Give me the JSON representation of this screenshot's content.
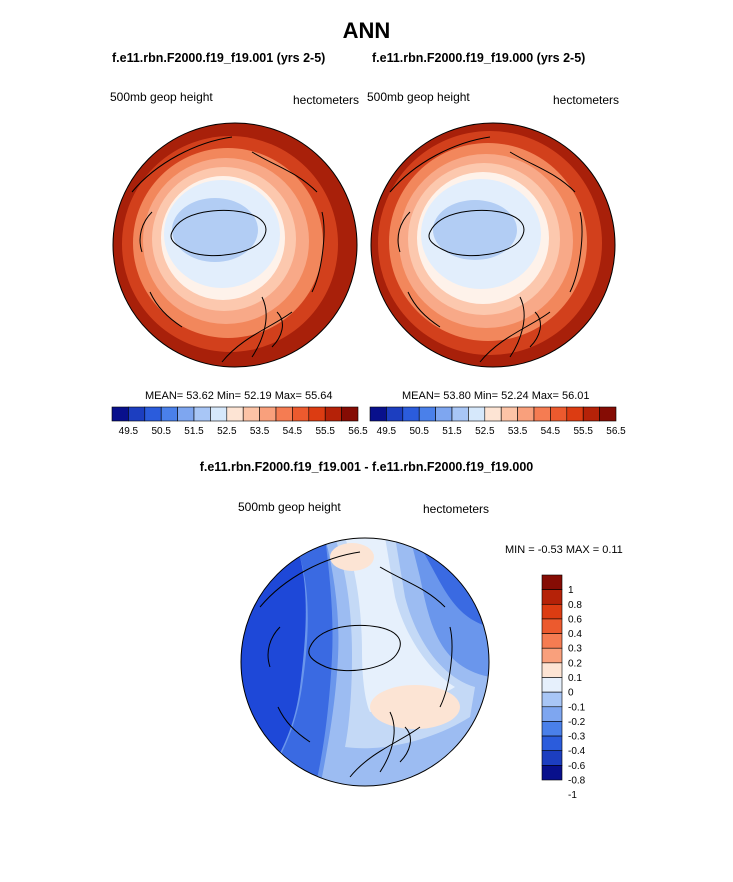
{
  "title": "ANN",
  "panels": [
    {
      "subtitle": "f.e11.rbn.F2000.f19_f19.001 (yrs 2-5)",
      "left_label": "500mb geop height",
      "right_label": "hectometers",
      "stats": {
        "mean_label": "MEAN=",
        "mean": "53.62",
        "min_label": "Min=",
        "min": "52.19",
        "max_label": "Max=",
        "max": "55.64"
      }
    },
    {
      "subtitle": "f.e11.rbn.F2000.f19_f19.000 (yrs 2-5)",
      "left_label": "500mb geop height",
      "right_label": "hectometers",
      "stats": {
        "mean_label": "MEAN=",
        "mean": "53.80",
        "min_label": "Min=",
        "min": "52.24",
        "max_label": "Max=",
        "max": "56.01"
      }
    }
  ],
  "diff_panel": {
    "subtitle": "f.e11.rbn.F2000.f19_f19.001 - f.e11.rbn.F2000.f19_f19.000",
    "left_label": "500mb geop height",
    "right_label": "hectometers",
    "stats_text": "MIN =  -0.53 MAX =   0.11"
  },
  "colorbar": {
    "colors": [
      "#08108c",
      "#1c3ec0",
      "#2b5cdc",
      "#4a80ea",
      "#7ea6f0",
      "#a8c6f6",
      "#d6e8fb",
      "#fde4d4",
      "#fcc3a6",
      "#f9a07c",
      "#f57c52",
      "#ec5a2e",
      "#dc3c12",
      "#b52208",
      "#850c04"
    ],
    "tick_labels": [
      "49.5",
      "50.5",
      "51.5",
      "52.5",
      "53.5",
      "54.5",
      "55.5",
      "56.5"
    ]
  },
  "diff_colorbar": {
    "colors": [
      "#850c04",
      "#b52208",
      "#dc3c12",
      "#ec5a2e",
      "#f57c52",
      "#f9a07c",
      "#fde4d4",
      "#e6f0fc",
      "#a8c6f6",
      "#7ea6f0",
      "#4a80ea",
      "#2b5cdc",
      "#1c3ec0",
      "#08108c"
    ],
    "tick_labels": [
      "1",
      "0.8",
      "0.6",
      "0.4",
      "0.3",
      "0.2",
      "0.1",
      "0",
      "-0.1",
      "-0.2",
      "-0.3",
      "-0.4",
      "-0.6",
      "-0.8",
      "-1"
    ]
  },
  "map_colors": {
    "warm": [
      "#a8200a",
      "#d2401c",
      "#e8633a",
      "#f2875c",
      "#f8a988",
      "#fcc8ae",
      "#fde2d2",
      "#fef2ea"
    ],
    "cool_light": "#e2eefc",
    "cool_mid": "#c8dcf8",
    "cool_deep": "#b2cdf4",
    "diff_blues": [
      "#1e48d8",
      "#3a6ae2",
      "#6a96ec",
      "#9cbcf2",
      "#c4d9f6",
      "#e6f0fc"
    ],
    "diff_peach": "#fce4d4"
  }
}
